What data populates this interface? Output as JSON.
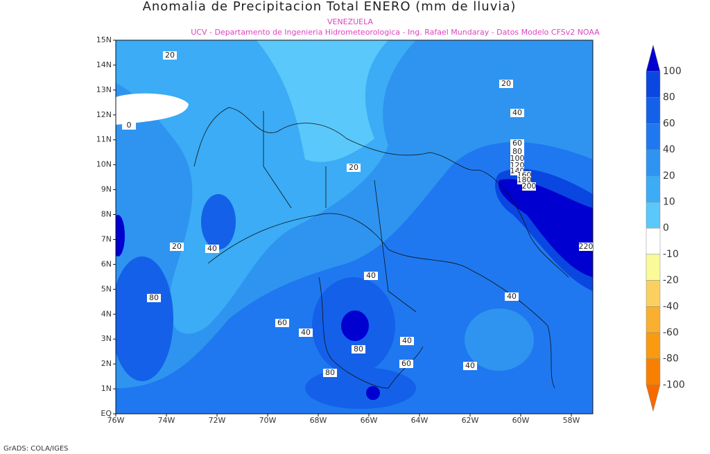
{
  "map": {
    "title": "Anomalia de Precipitacion Total ENERO (mm de lluvia)",
    "subtitle": "VENEZUELA",
    "credits": "UCV - Departamento de Ingenieria Hidrometeorologica - Ing. Rafael Mundaray - Datos Modelo CFSv2 NOAA",
    "footer": "GrADS: COLA/IGES",
    "x_ticks": [
      "76W",
      "74W",
      "72W",
      "70W",
      "68W",
      "66W",
      "64W",
      "62W",
      "60W",
      "58W"
    ],
    "y_ticks": [
      "EQ",
      "1N",
      "2N",
      "3N",
      "4N",
      "5N",
      "6N",
      "7N",
      "8N",
      "9N",
      "10N",
      "11N",
      "12N",
      "13N",
      "14N",
      "15N"
    ],
    "contour_labels": [
      20,
      20,
      40,
      0,
      60,
      80,
      100,
      120,
      140,
      160,
      180,
      200,
      20,
      220,
      20,
      40,
      40,
      80,
      40,
      60,
      40,
      40,
      80,
      60,
      40,
      80
    ],
    "colorbar": {
      "labels": [
        100,
        80,
        60,
        40,
        20,
        10,
        0,
        -10,
        -20,
        -40,
        -60,
        -80,
        -100
      ],
      "colors": [
        "#0000d0",
        "#0a46e0",
        "#1560e8",
        "#1f78f0",
        "#2e94f0",
        "#3bacf5",
        "#5ac8fa",
        "#ffffff",
        "#fafa98",
        "#fbd060",
        "#f9b030",
        "#f99a10",
        "#f88000",
        "#f86a00"
      ]
    }
  }
}
